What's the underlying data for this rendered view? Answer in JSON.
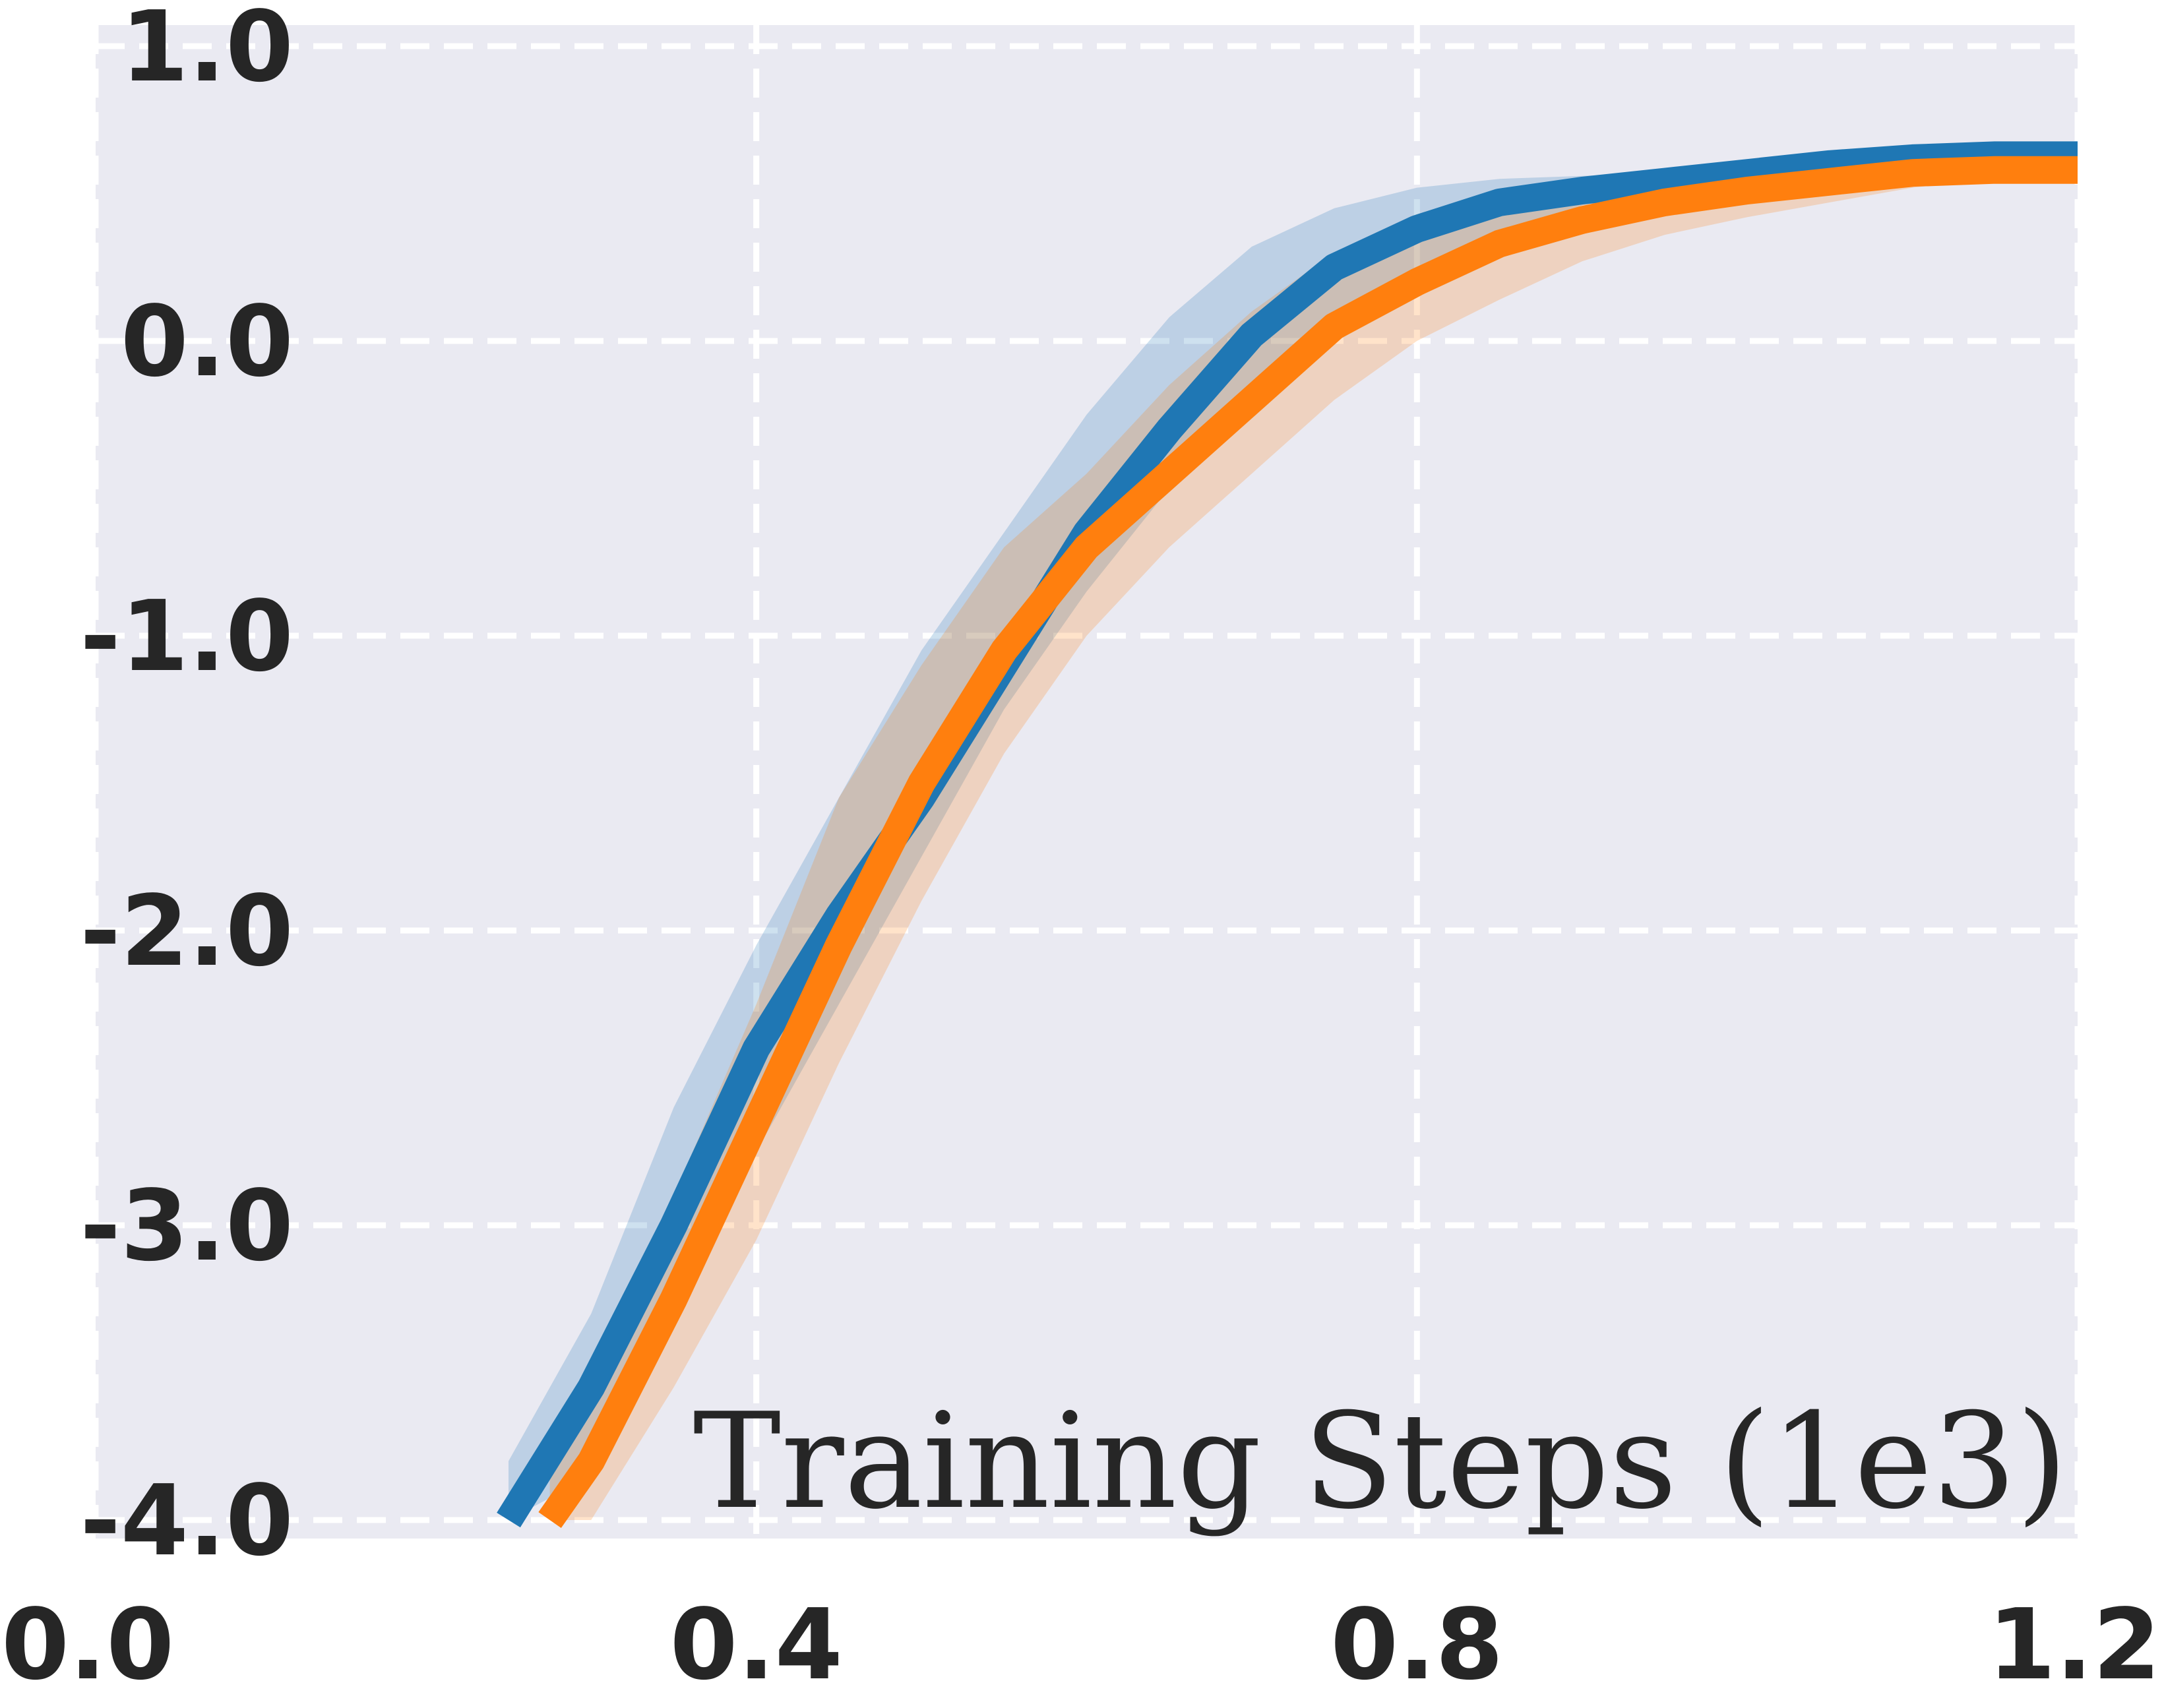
{
  "chart_data": {
    "type": "line",
    "title": "",
    "xlabel": "Training Steps (1e3)",
    "ylabel": "",
    "xlim": [
      0.0,
      1.2
    ],
    "ylim": [
      -4.0,
      1.0
    ],
    "x_ticks": [
      0.0,
      0.4,
      0.8,
      1.2
    ],
    "x_tick_labels": [
      "0.0",
      "0.4",
      "0.8",
      "1.2"
    ],
    "y_ticks": [
      1.0,
      0.0,
      -1.0,
      -2.0,
      -3.0,
      -4.0
    ],
    "y_tick_labels": [
      "1.0",
      "0.0",
      "-1.0",
      "-2.0",
      "-3.0",
      "-4.0"
    ],
    "grid": true,
    "legend": "none",
    "background_color": "#eaeaf2",
    "series": [
      {
        "color": "#1f77b4",
        "x": [
          0.25,
          0.3,
          0.35,
          0.4,
          0.45,
          0.5,
          0.55,
          0.6,
          0.65,
          0.7,
          0.75,
          0.8,
          0.85,
          0.9,
          0.95,
          1.0,
          1.05,
          1.1,
          1.15,
          1.2
        ],
        "y": [
          -4.0,
          -3.55,
          -3.0,
          -2.4,
          -1.95,
          -1.55,
          -1.1,
          -0.65,
          -0.3,
          0.02,
          0.25,
          0.38,
          0.47,
          0.51,
          0.54,
          0.57,
          0.6,
          0.62,
          0.63,
          0.63
        ],
        "upper": [
          -3.8,
          -3.3,
          -2.6,
          -2.05,
          -1.55,
          -1.05,
          -0.65,
          -0.25,
          0.08,
          0.32,
          0.45,
          0.52,
          0.55,
          0.56,
          0.57,
          0.58,
          0.61,
          0.63,
          0.64,
          0.64
        ],
        "lower": [
          -4.0,
          -3.85,
          -3.3,
          -2.75,
          -2.25,
          -1.75,
          -1.25,
          -0.85,
          -0.5,
          -0.2,
          0.05,
          0.24,
          0.37,
          0.46,
          0.51,
          0.55,
          0.58,
          0.6,
          0.61,
          0.62
        ]
      },
      {
        "color": "#ff7f0e",
        "x": [
          0.275,
          0.3,
          0.35,
          0.4,
          0.45,
          0.5,
          0.55,
          0.6,
          0.65,
          0.7,
          0.75,
          0.8,
          0.85,
          0.9,
          0.95,
          1.0,
          1.05,
          1.1,
          1.15,
          1.2
        ],
        "y": [
          -4.0,
          -3.8,
          -3.25,
          -2.65,
          -2.05,
          -1.5,
          -1.05,
          -0.7,
          -0.45,
          -0.2,
          0.05,
          0.2,
          0.33,
          0.41,
          0.47,
          0.51,
          0.54,
          0.57,
          0.58,
          0.58
        ],
        "upper": [
          -3.85,
          -3.55,
          -2.9,
          -2.25,
          -1.55,
          -1.1,
          -0.7,
          -0.45,
          -0.15,
          0.1,
          0.3,
          0.43,
          0.5,
          0.54,
          0.56,
          0.57,
          0.58,
          0.6,
          0.6,
          0.6
        ],
        "lower": [
          -4.0,
          -4.0,
          -3.55,
          -3.05,
          -2.45,
          -1.9,
          -1.4,
          -1.0,
          -0.7,
          -0.45,
          -0.2,
          0.0,
          0.14,
          0.27,
          0.36,
          0.42,
          0.47,
          0.52,
          0.55,
          0.56
        ]
      }
    ]
  }
}
